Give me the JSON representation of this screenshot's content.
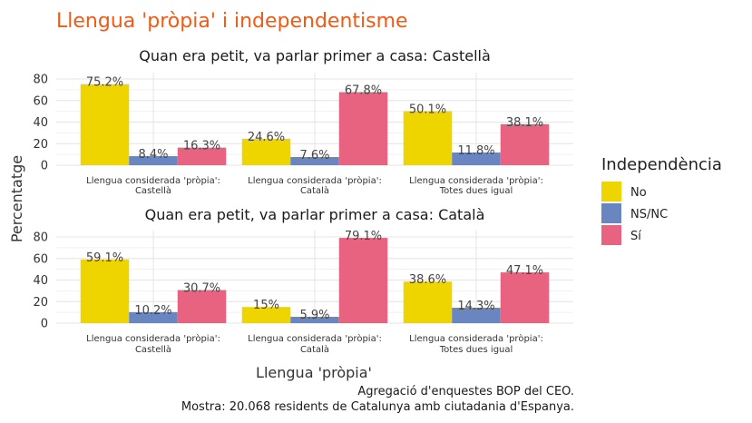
{
  "title": "Llengua 'pròpia' i independentisme",
  "caption": [
    "Agregació d'enquestes BOP del CEO.",
    "Mostra: 20.068 residents de Catalunya amb ciutadania d'Espanya."
  ],
  "chart_data": {
    "type": "bar",
    "xlabel": "Llengua 'pròpia'",
    "ylabel": "Percentatge",
    "ylim": [
      0,
      86
    ],
    "yticks": [
      "0",
      "20",
      "40",
      "60",
      "80"
    ],
    "ytick_values": [
      0,
      20,
      40,
      60,
      80
    ],
    "legend": {
      "title": "Independència",
      "placement": "right",
      "items": [
        {
          "label": "No",
          "color": "#efd500"
        },
        {
          "label": "NS/NC",
          "color": "#6a86c1"
        },
        {
          "label": "Sí",
          "color": "#e8637f"
        }
      ]
    },
    "categories": [
      [
        "Llengua considerada 'pròpia':",
        "Castellà"
      ],
      [
        "Llengua considerada 'pròpia':",
        "Català"
      ],
      [
        "Llengua considerada 'pròpia':",
        "Totes dues igual"
      ]
    ],
    "facets": [
      {
        "title": "Quan era petit, va parlar primer a casa: Castellà",
        "series": [
          {
            "name": "No",
            "values": [
              75.2,
              24.6,
              50.1
            ],
            "labels": [
              "75.2%",
              "24.6%",
              "50.1%"
            ]
          },
          {
            "name": "NS/NC",
            "values": [
              8.4,
              7.6,
              11.8
            ],
            "labels": [
              "8.4%",
              "7.6%",
              "11.8%"
            ]
          },
          {
            "name": "Sí",
            "values": [
              16.3,
              67.8,
              38.1
            ],
            "labels": [
              "16.3%",
              "67.8%",
              "38.1%"
            ]
          }
        ]
      },
      {
        "title": "Quan era petit, va parlar primer a casa: Català",
        "series": [
          {
            "name": "No",
            "values": [
              59.1,
              15,
              38.6
            ],
            "labels": [
              "59.1%",
              "15%",
              "38.6%"
            ]
          },
          {
            "name": "NS/NC",
            "values": [
              10.2,
              5.9,
              14.3
            ],
            "labels": [
              "10.2%",
              "5.9%",
              "14.3%"
            ]
          },
          {
            "name": "Sí",
            "values": [
              30.7,
              79.1,
              47.1
            ],
            "labels": [
              "30.7%",
              "79.1%",
              "47.1%"
            ]
          }
        ]
      }
    ]
  }
}
